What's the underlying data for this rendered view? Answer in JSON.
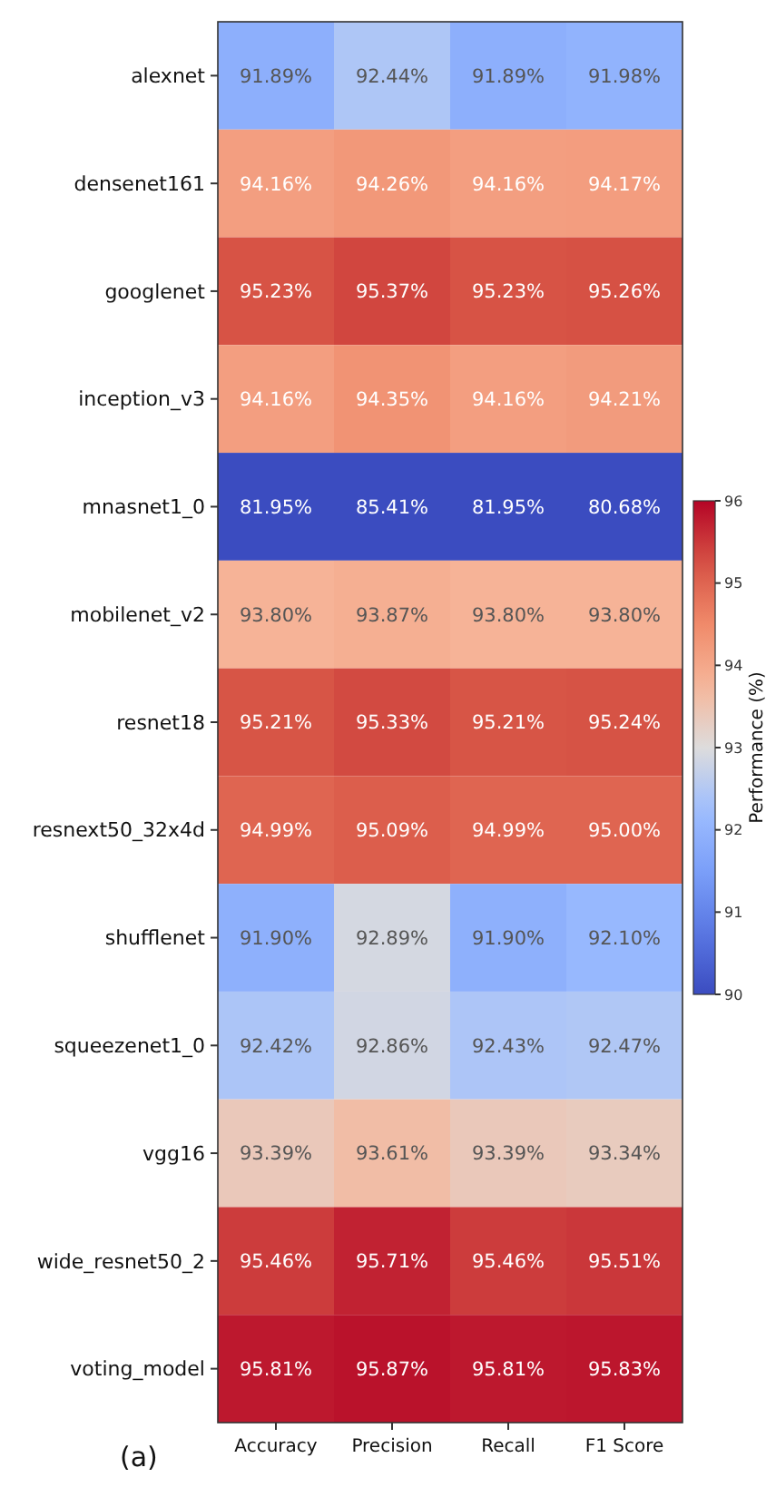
{
  "chart_data": {
    "type": "heatmap",
    "clabel": "Performance (%)",
    "annotations": [
      "(a)"
    ],
    "categories": [
      "Accuracy",
      "Precision",
      "Recall",
      "F1 Score"
    ],
    "y_categories": [
      "alexnet",
      "densenet161",
      "googlenet",
      "inception_v3",
      "mnasnet1_0",
      "mobilenet_v2",
      "resnet18",
      "resnext50_32x4d",
      "shufflenet",
      "squeezenet1_0",
      "vgg16",
      "wide_resnet50_2",
      "voting_model"
    ],
    "cells": [
      [
        91.89,
        92.44,
        91.89,
        91.98
      ],
      [
        94.16,
        94.26,
        94.16,
        94.17
      ],
      [
        95.23,
        95.37,
        95.23,
        95.26
      ],
      [
        94.16,
        94.35,
        94.16,
        94.21
      ],
      [
        81.95,
        85.41,
        81.95,
        80.68
      ],
      [
        93.8,
        93.87,
        93.8,
        93.8
      ],
      [
        95.21,
        95.33,
        95.21,
        95.24
      ],
      [
        94.99,
        95.09,
        94.99,
        95.0
      ],
      [
        91.9,
        92.89,
        91.9,
        92.1
      ],
      [
        92.42,
        92.86,
        92.43,
        92.47
      ],
      [
        93.39,
        93.61,
        93.39,
        93.34
      ],
      [
        95.46,
        95.71,
        95.46,
        95.51
      ],
      [
        95.81,
        95.87,
        95.81,
        95.83
      ]
    ],
    "cell_labels": [
      [
        "91.89%",
        "92.44%",
        "91.89%",
        "91.98%"
      ],
      [
        "94.16%",
        "94.26%",
        "94.16%",
        "94.17%"
      ],
      [
        "95.23%",
        "95.37%",
        "95.23%",
        "95.26%"
      ],
      [
        "94.16%",
        "94.35%",
        "94.16%",
        "94.21%"
      ],
      [
        "81.95%",
        "85.41%",
        "81.95%",
        "80.68%"
      ],
      [
        "93.80%",
        "93.87%",
        "93.80%",
        "93.80%"
      ],
      [
        "95.21%",
        "95.33%",
        "95.21%",
        "95.24%"
      ],
      [
        "94.99%",
        "95.09%",
        "94.99%",
        "95.00%"
      ],
      [
        "91.90%",
        "92.89%",
        "91.90%",
        "92.10%"
      ],
      [
        "92.42%",
        "92.86%",
        "92.43%",
        "92.47%"
      ],
      [
        "93.39%",
        "93.61%",
        "93.39%",
        "93.34%"
      ],
      [
        "95.46%",
        "95.71%",
        "95.46%",
        "95.51%"
      ],
      [
        "95.81%",
        "95.87%",
        "95.81%",
        "95.83%"
      ]
    ],
    "clim": [
      90,
      96
    ],
    "cticks": [
      90,
      91,
      92,
      93,
      94,
      95,
      96
    ]
  }
}
